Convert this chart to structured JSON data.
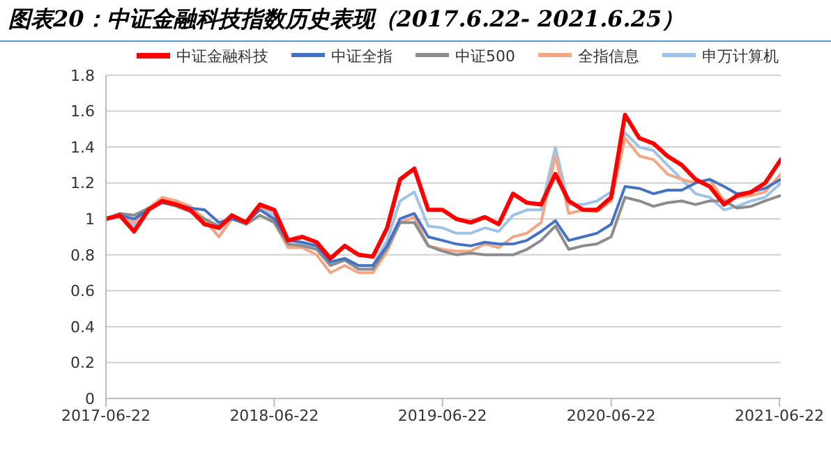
{
  "chart_data": {
    "type": "line",
    "title": "图表20：中证金融科技指数历史表现（2017.6.22- 2021.6.25）",
    "x": [
      "2017-06-22",
      "2017-07-22",
      "2017-08-22",
      "2017-09-22",
      "2017-10-22",
      "2017-11-22",
      "2017-12-22",
      "2018-01-22",
      "2018-02-22",
      "2018-03-22",
      "2018-04-22",
      "2018-05-22",
      "2018-06-22",
      "2018-07-22",
      "2018-08-22",
      "2018-09-22",
      "2018-10-22",
      "2018-11-22",
      "2018-12-22",
      "2019-01-22",
      "2019-02-22",
      "2019-03-22",
      "2019-04-22",
      "2019-05-22",
      "2019-06-22",
      "2019-07-22",
      "2019-08-22",
      "2019-09-22",
      "2019-10-22",
      "2019-11-22",
      "2019-12-22",
      "2020-01-22",
      "2020-02-22",
      "2020-03-22",
      "2020-04-22",
      "2020-05-22",
      "2020-06-22",
      "2020-07-22",
      "2020-08-22",
      "2020-09-22",
      "2020-10-22",
      "2020-11-22",
      "2020-12-22",
      "2021-01-22",
      "2021-02-22",
      "2021-03-22",
      "2021-04-22",
      "2021-05-22",
      "2021-06-25"
    ],
    "series": [
      {
        "name": "中证金融科技",
        "color": "#ff0000",
        "values": [
          1.0,
          1.02,
          0.93,
          1.05,
          1.1,
          1.08,
          1.05,
          0.97,
          0.95,
          1.02,
          0.98,
          1.08,
          1.05,
          0.88,
          0.9,
          0.87,
          0.78,
          0.85,
          0.8,
          0.79,
          0.95,
          1.22,
          1.28,
          1.05,
          1.05,
          1.0,
          0.98,
          1.01,
          0.97,
          1.14,
          1.09,
          1.08,
          1.25,
          1.1,
          1.05,
          1.05,
          1.12,
          1.58,
          1.45,
          1.42,
          1.35,
          1.3,
          1.22,
          1.18,
          1.08,
          1.13,
          1.15,
          1.2,
          1.33
        ]
      },
      {
        "name": "中证全指",
        "color": "#4472c4",
        "values": [
          1.0,
          1.02,
          1.0,
          1.05,
          1.09,
          1.08,
          1.06,
          1.05,
          0.98,
          1.0,
          0.98,
          1.05,
          1.0,
          0.88,
          0.87,
          0.85,
          0.76,
          0.78,
          0.74,
          0.74,
          0.85,
          1.0,
          1.03,
          0.9,
          0.88,
          0.86,
          0.85,
          0.87,
          0.86,
          0.86,
          0.88,
          0.93,
          0.99,
          0.88,
          0.9,
          0.92,
          0.97,
          1.18,
          1.17,
          1.14,
          1.16,
          1.16,
          1.2,
          1.22,
          1.18,
          1.14,
          1.15,
          1.17,
          1.22
        ]
      },
      {
        "name": "中证500",
        "color": "#8c8c8c",
        "values": [
          1.0,
          1.03,
          1.02,
          1.06,
          1.09,
          1.07,
          1.04,
          1.0,
          0.96,
          1.0,
          0.97,
          1.02,
          0.98,
          0.86,
          0.85,
          0.83,
          0.74,
          0.77,
          0.72,
          0.72,
          0.84,
          0.98,
          0.98,
          0.85,
          0.82,
          0.8,
          0.81,
          0.8,
          0.8,
          0.8,
          0.83,
          0.88,
          0.96,
          0.83,
          0.85,
          0.86,
          0.9,
          1.12,
          1.1,
          1.07,
          1.09,
          1.1,
          1.08,
          1.1,
          1.1,
          1.06,
          1.07,
          1.1,
          1.13
        ]
      },
      {
        "name": "全指信息",
        "color": "#f4a582",
        "values": [
          1.0,
          1.02,
          0.98,
          1.06,
          1.12,
          1.1,
          1.07,
          1.0,
          0.9,
          1.0,
          0.98,
          1.07,
          0.98,
          0.84,
          0.84,
          0.8,
          0.7,
          0.74,
          0.7,
          0.7,
          0.82,
          0.98,
          1.01,
          0.85,
          0.83,
          0.82,
          0.82,
          0.86,
          0.84,
          0.9,
          0.92,
          0.98,
          1.35,
          1.03,
          1.05,
          1.04,
          1.1,
          1.45,
          1.35,
          1.33,
          1.25,
          1.22,
          1.2,
          1.22,
          1.1,
          1.12,
          1.13,
          1.15,
          1.25
        ]
      },
      {
        "name": "申万计算机",
        "color": "#9dc3e6",
        "values": [
          1.0,
          1.02,
          0.96,
          1.05,
          1.1,
          1.09,
          1.06,
          0.99,
          0.9,
          1.01,
          0.98,
          1.07,
          1.02,
          0.85,
          0.86,
          0.84,
          0.74,
          0.78,
          0.74,
          0.74,
          0.88,
          1.1,
          1.15,
          0.96,
          0.95,
          0.92,
          0.92,
          0.95,
          0.93,
          1.02,
          1.05,
          1.05,
          1.4,
          1.08,
          1.08,
          1.1,
          1.15,
          1.48,
          1.4,
          1.38,
          1.3,
          1.22,
          1.14,
          1.12,
          1.05,
          1.07,
          1.1,
          1.12,
          1.2
        ]
      }
    ],
    "xlim": [
      "2017-06-22",
      "2021-06-25"
    ],
    "xticks": [
      "2017-06-22",
      "2018-06-22",
      "2019-06-22",
      "2020-06-22",
      "2021-06-22"
    ],
    "ylim": [
      0,
      1.8
    ],
    "yticks": [
      0,
      0.2,
      0.4,
      0.6,
      0.8,
      1,
      1.2,
      1.4,
      1.6,
      1.8
    ],
    "grid": "y",
    "legend": "top",
    "marker": "none",
    "line_style": "solid"
  }
}
